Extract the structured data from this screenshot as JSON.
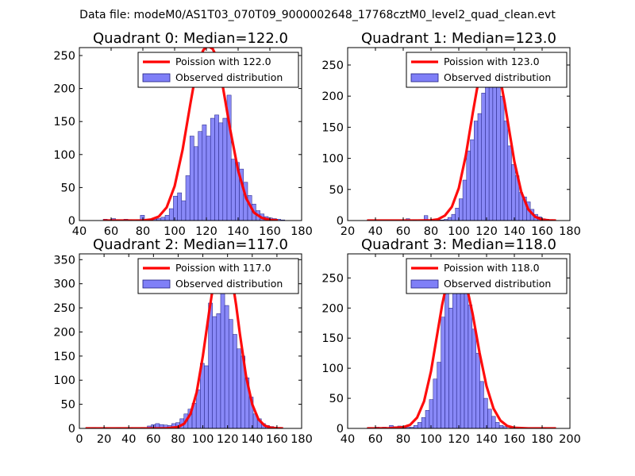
{
  "figure": {
    "suptitle": "Data file: modeM0/AS1T03_070T09_9000002648_17768cztM0_level2_quad_clean.evt"
  },
  "colors": {
    "bar_fill": "#7f7ff7",
    "bar_edge": "#1f1f7f",
    "poisson_line": "#ff0000",
    "axes": "#000000",
    "legend_edge": "#000000"
  },
  "chart_data": [
    {
      "type": "bar",
      "title": "Quadrant 0: Median=122.0",
      "median": 122.0,
      "xlim": [
        40,
        180
      ],
      "ylim": [
        0,
        262
      ],
      "xticks": [
        40,
        60,
        80,
        100,
        120,
        140,
        160,
        180
      ],
      "yticks": [
        0,
        50,
        100,
        150,
        200,
        250
      ],
      "xlabel": "",
      "ylabel": "",
      "legend_position": "top-right",
      "legend": {
        "line_label": "Poission with 122.0",
        "bar_label": "Observed distribution"
      },
      "histogram": {
        "bin_width": 2.6,
        "bins": [
          [
            55.0,
            2
          ],
          [
            57.6,
            1
          ],
          [
            60.2,
            3
          ],
          [
            62.8,
            1
          ],
          [
            65.4,
            0
          ],
          [
            68.0,
            2
          ],
          [
            70.6,
            1
          ],
          [
            73.2,
            0
          ],
          [
            75.8,
            1
          ],
          [
            78.4,
            8
          ],
          [
            81.0,
            0
          ],
          [
            83.6,
            1
          ],
          [
            86.2,
            2
          ],
          [
            88.8,
            3
          ],
          [
            91.4,
            5
          ],
          [
            94.0,
            8
          ],
          [
            96.6,
            18
          ],
          [
            99.2,
            37
          ],
          [
            101.8,
            42
          ],
          [
            104.4,
            30
          ],
          [
            107.0,
            68
          ],
          [
            109.6,
            128
          ],
          [
            112.2,
            112
          ],
          [
            114.8,
            135
          ],
          [
            117.4,
            145
          ],
          [
            120.0,
            128
          ],
          [
            122.6,
            155
          ],
          [
            125.2,
            160
          ],
          [
            127.8,
            148
          ],
          [
            130.4,
            155
          ],
          [
            133.0,
            190
          ],
          [
            135.6,
            93
          ],
          [
            138.2,
            88
          ],
          [
            140.8,
            78
          ],
          [
            143.4,
            58
          ],
          [
            146.0,
            38
          ],
          [
            148.6,
            25
          ],
          [
            151.2,
            15
          ],
          [
            153.8,
            10
          ],
          [
            156.4,
            6
          ],
          [
            159.0,
            4
          ],
          [
            161.6,
            3
          ],
          [
            164.2,
            2
          ],
          [
            166.8,
            1
          ]
        ]
      },
      "poisson": {
        "x": [
          55,
          60,
          65,
          70,
          75,
          80,
          85,
          90,
          95,
          100,
          105,
          110,
          112,
          115,
          118,
          120,
          122,
          124,
          126,
          128,
          130,
          135,
          140,
          145,
          150,
          155,
          160,
          165
        ],
        "y": [
          0,
          0,
          0,
          0,
          0,
          0.2,
          1.5,
          6,
          20,
          52,
          107,
          178,
          205,
          238,
          258,
          263,
          263,
          260,
          250,
          232,
          208,
          138,
          76,
          34,
          12,
          4,
          1,
          0.3
        ]
      }
    },
    {
      "type": "bar",
      "title": "Quadrant 1: Median=123.0",
      "median": 123.0,
      "xlim": [
        20,
        180
      ],
      "ylim": [
        0,
        278
      ],
      "xticks": [
        20,
        40,
        60,
        80,
        100,
        120,
        140,
        160,
        180
      ],
      "yticks": [
        0,
        50,
        100,
        150,
        200,
        250
      ],
      "xlabel": "",
      "ylabel": "",
      "legend_position": "top-right",
      "legend": {
        "line_label": "Poission with 123.0",
        "bar_label": "Observed distribution"
      },
      "histogram": {
        "bin_width": 2.7,
        "bins": [
          [
            34.0,
            1
          ],
          [
            62.0,
            3
          ],
          [
            67.0,
            1
          ],
          [
            75.0,
            8
          ],
          [
            80.0,
            2
          ],
          [
            84.0,
            1
          ],
          [
            86.7,
            1
          ],
          [
            89.4,
            2
          ],
          [
            92.1,
            5
          ],
          [
            94.8,
            10
          ],
          [
            97.5,
            20
          ],
          [
            100.2,
            35
          ],
          [
            102.9,
            65
          ],
          [
            105.6,
            112
          ],
          [
            108.3,
            130
          ],
          [
            111.0,
            160
          ],
          [
            113.7,
            172
          ],
          [
            116.4,
            205
          ],
          [
            119.1,
            255
          ],
          [
            121.8,
            215
          ],
          [
            124.5,
            225
          ],
          [
            127.2,
            240
          ],
          [
            129.9,
            200
          ],
          [
            132.6,
            160
          ],
          [
            135.3,
            120
          ],
          [
            138.0,
            90
          ],
          [
            140.7,
            72
          ],
          [
            143.4,
            45
          ],
          [
            146.1,
            38
          ],
          [
            148.8,
            30
          ],
          [
            151.5,
            18
          ],
          [
            154.2,
            10
          ],
          [
            156.9,
            6
          ],
          [
            159.6,
            3
          ],
          [
            162.3,
            2
          ],
          [
            165.0,
            1
          ]
        ]
      },
      "poisson": {
        "x": [
          34,
          50,
          60,
          70,
          80,
          85,
          90,
          95,
          100,
          105,
          110,
          113,
          116,
          119,
          121,
          123,
          125,
          127,
          130,
          133,
          136,
          140,
          145,
          150,
          155,
          160,
          165,
          170
        ],
        "y": [
          0,
          0,
          0,
          0,
          0.3,
          2,
          8,
          22,
          52,
          104,
          172,
          210,
          242,
          260,
          266,
          267,
          265,
          255,
          226,
          190,
          149,
          95,
          46,
          18,
          6,
          1.5,
          0.4,
          0
        ]
      }
    },
    {
      "type": "bar",
      "title": "Quadrant 2: Median=117.0",
      "median": 117.0,
      "xlim": [
        0,
        180
      ],
      "ylim": [
        0,
        362
      ],
      "xticks": [
        0,
        20,
        40,
        60,
        80,
        100,
        120,
        140,
        160,
        180
      ],
      "yticks": [
        0,
        50,
        100,
        150,
        200,
        250,
        300,
        350
      ],
      "xlabel": "",
      "ylabel": "",
      "legend_position": "top-right",
      "legend": {
        "line_label": "Poission with 117.0",
        "bar_label": "Observed distribution"
      },
      "histogram": {
        "bin_width": 3.3,
        "bins": [
          [
            5.0,
            1
          ],
          [
            10.0,
            1
          ],
          [
            20.0,
            1
          ],
          [
            30.0,
            1
          ],
          [
            40.0,
            1
          ],
          [
            50.0,
            2
          ],
          [
            55.0,
            5
          ],
          [
            58.3,
            8
          ],
          [
            61.6,
            10
          ],
          [
            64.9,
            8
          ],
          [
            68.2,
            7
          ],
          [
            71.5,
            6
          ],
          [
            74.8,
            10
          ],
          [
            78.1,
            12
          ],
          [
            81.4,
            20
          ],
          [
            84.7,
            30
          ],
          [
            88.0,
            40
          ],
          [
            91.3,
            52
          ],
          [
            94.6,
            80
          ],
          [
            97.9,
            135
          ],
          [
            101.2,
            130
          ],
          [
            104.5,
            260
          ],
          [
            107.8,
            232
          ],
          [
            111.1,
            238
          ],
          [
            114.4,
            300
          ],
          [
            117.7,
            255
          ],
          [
            121.0,
            226
          ],
          [
            124.3,
            195
          ],
          [
            127.6,
            165
          ],
          [
            130.9,
            150
          ],
          [
            134.2,
            105
          ],
          [
            137.5,
            65
          ],
          [
            140.8,
            30
          ],
          [
            144.1,
            20
          ],
          [
            147.4,
            10
          ],
          [
            150.7,
            6
          ],
          [
            154.0,
            4
          ],
          [
            157.3,
            2
          ],
          [
            160.6,
            1
          ]
        ]
      },
      "poisson": {
        "x": [
          5,
          20,
          40,
          60,
          70,
          80,
          85,
          90,
          95,
          100,
          105,
          108,
          111,
          114,
          116,
          118,
          120,
          122,
          124,
          127,
          130,
          135,
          140,
          145,
          150,
          155,
          160,
          165
        ],
        "y": [
          0,
          0,
          0,
          0,
          0,
          3,
          10,
          30,
          75,
          150,
          240,
          290,
          325,
          345,
          350,
          350,
          345,
          328,
          305,
          255,
          196,
          108,
          50,
          19,
          6,
          1.5,
          0.4,
          0
        ]
      }
    },
    {
      "type": "bar",
      "title": "Quadrant 3: Median=118.0",
      "median": 118.0,
      "xlim": [
        40,
        200
      ],
      "ylim": [
        0,
        290
      ],
      "xticks": [
        40,
        60,
        80,
        100,
        120,
        140,
        160,
        180,
        200
      ],
      "yticks": [
        0,
        50,
        100,
        150,
        200,
        250
      ],
      "xlabel": "",
      "ylabel": "",
      "legend_position": "top-right",
      "legend": {
        "line_label": "Poission with 118.0",
        "bar_label": "Observed distribution"
      },
      "histogram": {
        "bin_width": 2.8,
        "bins": [
          [
            54.0,
            1
          ],
          [
            60.0,
            2
          ],
          [
            65.0,
            2
          ],
          [
            70.0,
            5
          ],
          [
            73.0,
            3
          ],
          [
            76.0,
            4
          ],
          [
            79.0,
            3
          ],
          [
            82.0,
            2
          ],
          [
            84.8,
            2
          ],
          [
            87.6,
            5
          ],
          [
            90.4,
            10
          ],
          [
            93.2,
            18
          ],
          [
            96.0,
            30
          ],
          [
            98.8,
            48
          ],
          [
            101.6,
            82
          ],
          [
            104.4,
            110
          ],
          [
            107.2,
            185
          ],
          [
            110.0,
            245
          ],
          [
            112.8,
            200
          ],
          [
            115.6,
            225
          ],
          [
            118.4,
            280
          ],
          [
            121.2,
            235
          ],
          [
            124.0,
            275
          ],
          [
            126.8,
            205
          ],
          [
            129.6,
            165
          ],
          [
            132.4,
            125
          ],
          [
            135.2,
            78
          ],
          [
            138.0,
            50
          ],
          [
            140.8,
            32
          ],
          [
            143.6,
            20
          ],
          [
            146.4,
            10
          ],
          [
            149.2,
            5
          ],
          [
            152.0,
            3
          ],
          [
            160.0,
            1
          ],
          [
            180.0,
            1
          ]
        ]
      },
      "poisson": {
        "x": [
          54,
          60,
          70,
          80,
          85,
          90,
          95,
          100,
          104,
          108,
          112,
          115,
          118,
          121,
          124,
          127,
          130,
          135,
          140,
          145,
          150,
          155,
          160,
          170,
          180,
          190
        ],
        "y": [
          0,
          0,
          0.3,
          2,
          6,
          18,
          45,
          95,
          150,
          205,
          248,
          263,
          268,
          264,
          250,
          222,
          190,
          125,
          70,
          33,
          13,
          4,
          1,
          0,
          0,
          0
        ]
      }
    }
  ]
}
